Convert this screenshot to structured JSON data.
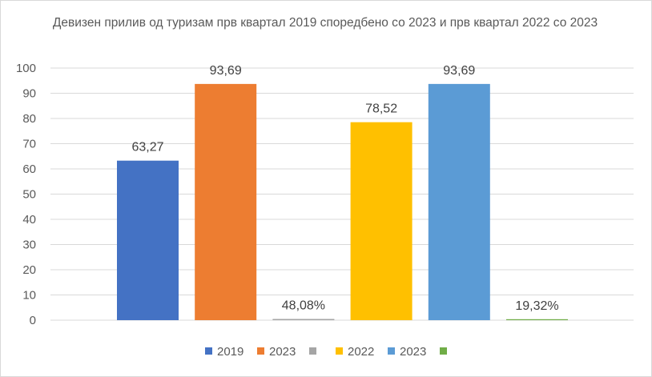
{
  "chart_data": {
    "type": "bar",
    "title": "Девизен прилив од туризам прв квартал 2019 споредбено со 2023 и прв квартал 2022 со 2023",
    "xlabel": "",
    "ylabel": "",
    "ylim": [
      0,
      100
    ],
    "yticks": [
      "0",
      "10",
      "20",
      "30",
      "40",
      "50",
      "60",
      "70",
      "80",
      "90",
      "100"
    ],
    "grid": true,
    "legend_position": "bottom",
    "series": [
      {
        "name": "2019",
        "value": 63.27,
        "label": "63,27",
        "color": "#4472c4"
      },
      {
        "name": "2023",
        "value": 93.69,
        "label": "93,69",
        "color": "#ed7d31"
      },
      {
        "name": "",
        "value": 0.48,
        "label": "48,08%",
        "color": "#a5a5a5"
      },
      {
        "name": "2022",
        "value": 78.52,
        "label": "78,52",
        "color": "#ffc000"
      },
      {
        "name": "2023",
        "value": 93.69,
        "label": "93,69",
        "color": "#5b9bd5"
      },
      {
        "name": "",
        "value": 0.19,
        "label": "19,32%",
        "color": "#70ad47"
      }
    ]
  }
}
